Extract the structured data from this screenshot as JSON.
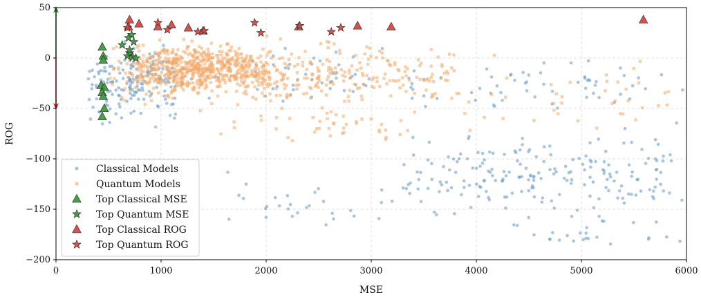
{
  "chart_data": {
    "type": "scatter",
    "xlabel": "MSE",
    "ylabel": "ROG",
    "xlim": [
      0,
      6000
    ],
    "ylim": [
      -200,
      50
    ],
    "xticks": [
      0,
      1000,
      2000,
      3000,
      4000,
      5000,
      6000
    ],
    "yticks": [
      -200,
      -150,
      -100,
      -50,
      0,
      50
    ],
    "grid": true,
    "legend_position": "lower-left",
    "colors": {
      "classical": "#6f9ec4",
      "quantum": "#f2a766",
      "top_classical_mse": "#3f9a3f",
      "top_quantum_mse": "#3f9a3f",
      "top_classical_rog": "#cf4b45",
      "top_quantum_rog": "#cf4b45",
      "arrow_up": "#1a8a1a",
      "arrow_down": "#e02020"
    },
    "series": [
      {
        "name": "Classical Models",
        "marker": "circle",
        "colorKey": "classical",
        "clusters": [
          {
            "x": [
              300,
              1200
            ],
            "y": [
              -75,
              25
            ],
            "n": 170
          },
          {
            "x": [
              1000,
              3500
            ],
            "y": [
              -60,
              25
            ],
            "n": 60
          },
          {
            "x": [
              3300,
              6000
            ],
            "y": [
              -170,
              -60
            ],
            "n": 200
          },
          {
            "x": [
              3300,
              6000
            ],
            "y": [
              -60,
              10
            ],
            "n": 55
          },
          {
            "x": [
              1500,
              3400
            ],
            "y": [
              -175,
              -110
            ],
            "n": 30
          },
          {
            "x": [
              4300,
              6000
            ],
            "y": [
              -195,
              -150
            ],
            "n": 25
          }
        ]
      },
      {
        "name": "Quantum Models",
        "marker": "square",
        "colorKey": "quantum",
        "clusters": [
          {
            "x": [
              700,
              2000
            ],
            "y": [
              -40,
              20
            ],
            "n": 480
          },
          {
            "x": [
              500,
              3800
            ],
            "y": [
              -55,
              25
            ],
            "n": 380
          },
          {
            "x": [
              1500,
              3500
            ],
            "y": [
              -90,
              -40
            ],
            "n": 45
          },
          {
            "x": [
              3500,
              6000
            ],
            "y": [
              -95,
              12
            ],
            "n": 45
          }
        ]
      },
      {
        "name": "Top Classical MSE",
        "marker": "triangle",
        "colorKey": "top_classical_mse",
        "points": [
          [
            440,
            11
          ],
          [
            450,
            2
          ],
          [
            450,
            -2
          ],
          [
            430,
            -27
          ],
          [
            460,
            -29
          ],
          [
            440,
            -34
          ],
          [
            450,
            -38
          ],
          [
            460,
            -50
          ],
          [
            440,
            -58
          ]
        ]
      },
      {
        "name": "Top Quantum MSE",
        "marker": "star",
        "colorKey": "top_quantum_mse",
        "points": [
          [
            720,
            23
          ],
          [
            690,
            20
          ],
          [
            630,
            13
          ],
          [
            740,
            16
          ],
          [
            700,
            5
          ],
          [
            680,
            2
          ],
          [
            730,
            1
          ],
          [
            760,
            0
          ],
          [
            700,
            8
          ]
        ]
      },
      {
        "name": "Top Classical ROG",
        "marker": "triangle",
        "colorKey": "top_classical_rog",
        "points": [
          [
            700,
            38
          ],
          [
            690,
            31
          ],
          [
            790,
            34
          ],
          [
            970,
            31
          ],
          [
            1100,
            33
          ],
          [
            1260,
            30
          ],
          [
            1400,
            27
          ],
          [
            2310,
            31
          ],
          [
            2870,
            32
          ],
          [
            3190,
            31
          ],
          [
            5590,
            38
          ]
        ]
      },
      {
        "name": "Top Quantum ROG",
        "marker": "star",
        "colorKey": "top_quantum_rog",
        "points": [
          [
            680,
            30
          ],
          [
            970,
            35
          ],
          [
            1060,
            28
          ],
          [
            1350,
            26
          ],
          [
            1410,
            27
          ],
          [
            1890,
            35
          ],
          [
            1950,
            25
          ],
          [
            2320,
            32
          ],
          [
            2620,
            26
          ],
          [
            2710,
            30
          ]
        ]
      }
    ]
  }
}
